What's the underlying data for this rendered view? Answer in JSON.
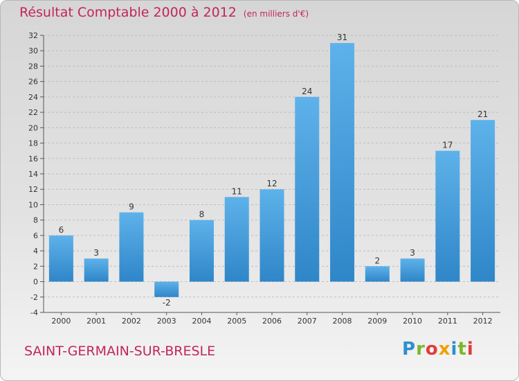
{
  "title": "Résultat Comptable 2000 à 2012",
  "unit_note": "(en milliers d'€)",
  "commune": "SAINT-GERMAIN-SUR-BRESLE",
  "logo": {
    "text": "Proxiti",
    "letters": [
      {
        "ch": "P",
        "color": "#2e8fd0"
      },
      {
        "ch": "r",
        "color": "#7ab829"
      },
      {
        "ch": "o",
        "color": "#e03c3c"
      },
      {
        "ch": "x",
        "color": "#f0a000"
      },
      {
        "ch": "i",
        "color": "#2e8fd0"
      },
      {
        "ch": "t",
        "color": "#7ab829"
      },
      {
        "ch": "i",
        "color": "#e03c3c"
      }
    ]
  },
  "colors": {
    "accent": "#c2255c",
    "bar_top": "#5eb2ea",
    "bar_bottom": "#2f86c8",
    "grid": "#bdbdbd"
  },
  "chart_data": {
    "type": "bar",
    "title": "Résultat Comptable 2000 à 2012",
    "ylabel": "en milliers d'€",
    "xlabel": "",
    "categories": [
      "2000",
      "2001",
      "2002",
      "2003",
      "2004",
      "2005",
      "2006",
      "2007",
      "2008",
      "2009",
      "2010",
      "2011",
      "2012"
    ],
    "values": [
      6,
      3,
      9,
      -2,
      8,
      11,
      12,
      24,
      31,
      2,
      3,
      17,
      21
    ],
    "ylim": [
      -4,
      32
    ],
    "yticks": [
      -4,
      -2,
      0,
      2,
      4,
      6,
      8,
      10,
      12,
      14,
      16,
      18,
      20,
      22,
      24,
      26,
      28,
      30,
      32
    ],
    "grid": true,
    "legend": "none"
  }
}
